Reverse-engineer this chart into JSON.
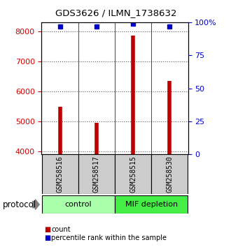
{
  "title": "GDS3626 / ILMN_1738632",
  "samples": [
    "GSM258516",
    "GSM258517",
    "GSM258515",
    "GSM258530"
  ],
  "counts": [
    5480,
    4960,
    7860,
    6340
  ],
  "percentile_ranks": [
    97,
    97,
    99,
    97
  ],
  "ylim_left": [
    3900,
    8300
  ],
  "ylim_right": [
    0,
    100
  ],
  "yticks_left": [
    4000,
    5000,
    6000,
    7000,
    8000
  ],
  "yticks_right": [
    0,
    25,
    50,
    75,
    100
  ],
  "bar_color": "#bb0000",
  "dot_color": "#0000cc",
  "bar_width": 0.12,
  "groups": [
    {
      "label": "control",
      "color": "#aaffaa",
      "n": 2
    },
    {
      "label": "MIF depletion",
      "color": "#44ee44",
      "n": 2
    }
  ],
  "protocol_label": "protocol",
  "legend_items": [
    {
      "color": "#bb0000",
      "label": "count"
    },
    {
      "color": "#0000cc",
      "label": "percentile rank within the sample"
    }
  ],
  "background_color": "#ffffff",
  "sample_box_color": "#cccccc",
  "left_tick_color": "#cc0000",
  "right_tick_color": "#0000cc"
}
